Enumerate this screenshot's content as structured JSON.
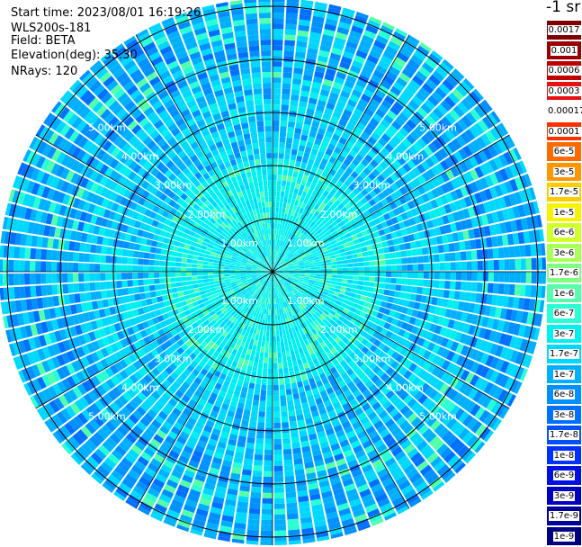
{
  "header": {
    "start_time": "Start time: 2023/08/01 16:19:26",
    "instrument": "WLS200s-181",
    "field": "Field: BETA",
    "elevation": "Elevation(deg): 35.30",
    "nrays": "NRays: 120"
  },
  "colorbar": {
    "unit_label": "-1 sr",
    "ticks": [
      {
        "label": "0.0017",
        "color": "#7f0000"
      },
      {
        "label": "0.001",
        "color": "#9a0000"
      },
      {
        "label": "0.0006",
        "color": "#c00000"
      },
      {
        "label": "0.0003",
        "color": "#e81010"
      },
      {
        "label": "0.00017",
        "color": "#ffffff"
      },
      {
        "label": "0.0001",
        "color": "#ff3000"
      },
      {
        "label": "6e-5",
        "color": "#ff6a00"
      },
      {
        "label": "3e-5",
        "color": "#ff9500"
      },
      {
        "label": "1.7e-5",
        "color": "#ffcc00"
      },
      {
        "label": "1e-5",
        "color": "#f4f400"
      },
      {
        "label": "6e-6",
        "color": "#d0ff2a"
      },
      {
        "label": "3e-6",
        "color": "#a8ff55"
      },
      {
        "label": "1.7e-6",
        "color": "#80ff80"
      },
      {
        "label": "1e-6",
        "color": "#55ffaa"
      },
      {
        "label": "6e-7",
        "color": "#2affd4"
      },
      {
        "label": "3e-7",
        "color": "#00f0f0"
      },
      {
        "label": "1.7e-7",
        "color": "#00d8ff"
      },
      {
        "label": "1e-7",
        "color": "#00b0ff"
      },
      {
        "label": "6e-8",
        "color": "#0090ff"
      },
      {
        "label": "3e-8",
        "color": "#0070ff"
      },
      {
        "label": "1.7e-8",
        "color": "#0050ff"
      },
      {
        "label": "1e-8",
        "color": "#0030ff"
      },
      {
        "label": "6e-9",
        "color": "#0010e0"
      },
      {
        "label": "3e-9",
        "color": "#0000c0"
      },
      {
        "label": "1.7e-9",
        "color": "#00009a"
      },
      {
        "label": "1e-9",
        "color": "#000080"
      }
    ]
  },
  "rings": {
    "labels": [
      "1.00km",
      "2.00km",
      "3.00km",
      "4.00km",
      "5.00km"
    ],
    "label_color": "#ffffff",
    "line_color": "#000000"
  },
  "radial_lines_count": 12,
  "palette": {
    "field_colors": [
      "#00d8ff",
      "#00b0ff",
      "#0090ff",
      "#00f0f0",
      "#2affd4",
      "#55ffaa",
      "#0070ff",
      "#0050ff"
    ],
    "background": "#ffffff"
  }
}
